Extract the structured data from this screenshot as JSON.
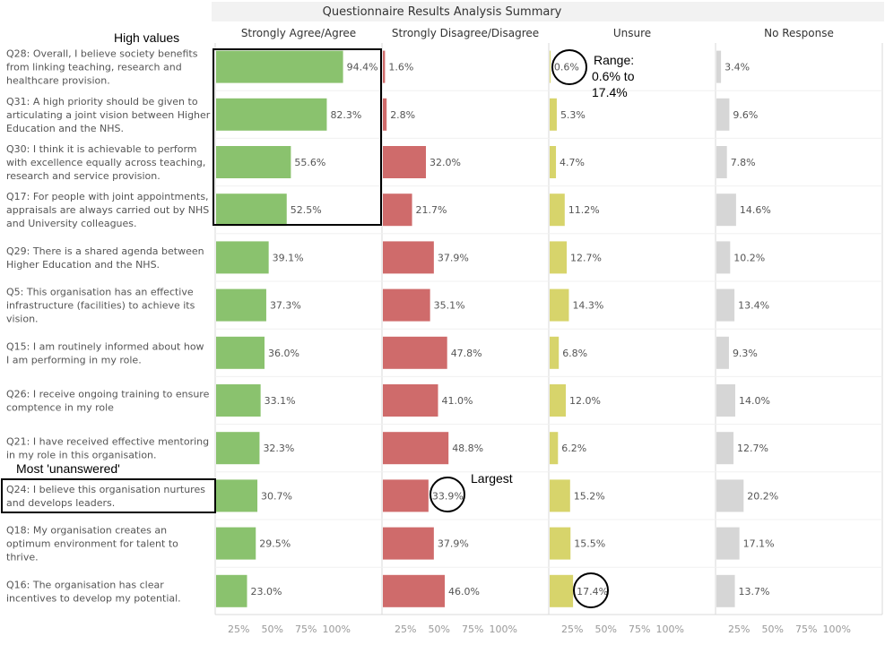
{
  "chart_data": {
    "type": "bar",
    "title": "Questionnaire Results Analysis Summary",
    "categories": [
      [
        "Q28: Overall, I believe society benefits",
        "from linking teaching, research and",
        "healthcare provision."
      ],
      [
        "Q31: A high priority should be given to",
        "articulating a joint vision between Higher",
        "Education and the NHS."
      ],
      [
        "Q30: I think it is achievable to perform",
        "with excellence equally across teaching,",
        "research and service provision."
      ],
      [
        "Q17: For people with joint appointments,",
        "appraisals are always carried out by NHS",
        "and University colleagues."
      ],
      [
        "Q29: There is a shared agenda between",
        "Higher Education and the NHS."
      ],
      [
        "Q5: This organisation has an effective",
        "infrastructure (facilities) to achieve its",
        "vision."
      ],
      [
        "Q15: I am routinely informed about how",
        "I am performing in my role."
      ],
      [
        "Q26: I receive ongoing training to ensure",
        "comptence in my role"
      ],
      [
        "Q21: I have received effective mentoring",
        "in my role in this organisation."
      ],
      [
        "Q24: I believe this organisation nurtures",
        "and develops leaders."
      ],
      [
        "Q18: My organisation creates an",
        "optimum environment for talent to",
        "thrive."
      ],
      [
        "Q16: The organisation has clear",
        "incentives to develop my potential."
      ]
    ],
    "series": [
      {
        "name": "Strongly Agree/Agree",
        "color": "#8ac26e",
        "values": [
          94.4,
          82.3,
          55.6,
          52.5,
          39.1,
          37.3,
          36.0,
          33.1,
          32.3,
          30.7,
          29.5,
          23.0
        ],
        "labels": [
          "94.4%",
          "82.3%",
          "55.6%",
          "52.5%",
          "39.1%",
          "37.3%",
          "36.0%",
          "33.1%",
          "32.3%",
          "30.7%",
          "29.5%",
          "23.0%"
        ]
      },
      {
        "name": "Strongly Disagree/Disagree",
        "color": "#cf6b6b",
        "values": [
          1.6,
          2.8,
          32.0,
          21.7,
          37.9,
          35.1,
          47.8,
          41.0,
          48.8,
          33.9,
          37.9,
          46.0
        ],
        "labels": [
          "1.6%",
          "2.8%",
          "32.0%",
          "21.7%",
          "37.9%",
          "35.1%",
          "47.8%",
          "41.0%",
          "48.8%",
          "33.9%",
          "37.9%",
          "46.0%"
        ]
      },
      {
        "name": "Unsure",
        "color": "#d7d46b",
        "values": [
          0.6,
          5.3,
          4.7,
          11.2,
          12.7,
          14.3,
          6.8,
          12.0,
          6.2,
          15.2,
          15.5,
          17.4
        ],
        "labels": [
          "0.6%",
          "5.3%",
          "4.7%",
          "11.2%",
          "12.7%",
          "14.3%",
          "6.8%",
          "12.0%",
          "6.2%",
          "15.2%",
          "15.5%",
          "17.4%"
        ]
      },
      {
        "name": "No Response",
        "color": "#d6d6d6",
        "values": [
          3.4,
          9.6,
          7.8,
          14.6,
          10.2,
          13.4,
          9.3,
          14.0,
          12.7,
          20.2,
          17.1,
          13.7
        ],
        "labels": [
          "3.4%",
          "9.6%",
          "7.8%",
          "14.6%",
          "10.2%",
          "13.4%",
          "9.3%",
          "14.0%",
          "12.7%",
          "20.2%",
          "17.1%",
          "13.7%"
        ]
      }
    ],
    "xlim": [
      0,
      100
    ],
    "x_ticks": [
      "25%",
      "50%",
      "75%",
      "100%"
    ],
    "x_tick_values": [
      25,
      50,
      75,
      100
    ],
    "grid": false,
    "annotations": {
      "high_values": "High values",
      "range_lines": [
        "Range:",
        "0.6% to",
        "17.4%"
      ],
      "largest": "Largest",
      "most_unanswered": "Most 'unanswered'"
    }
  }
}
